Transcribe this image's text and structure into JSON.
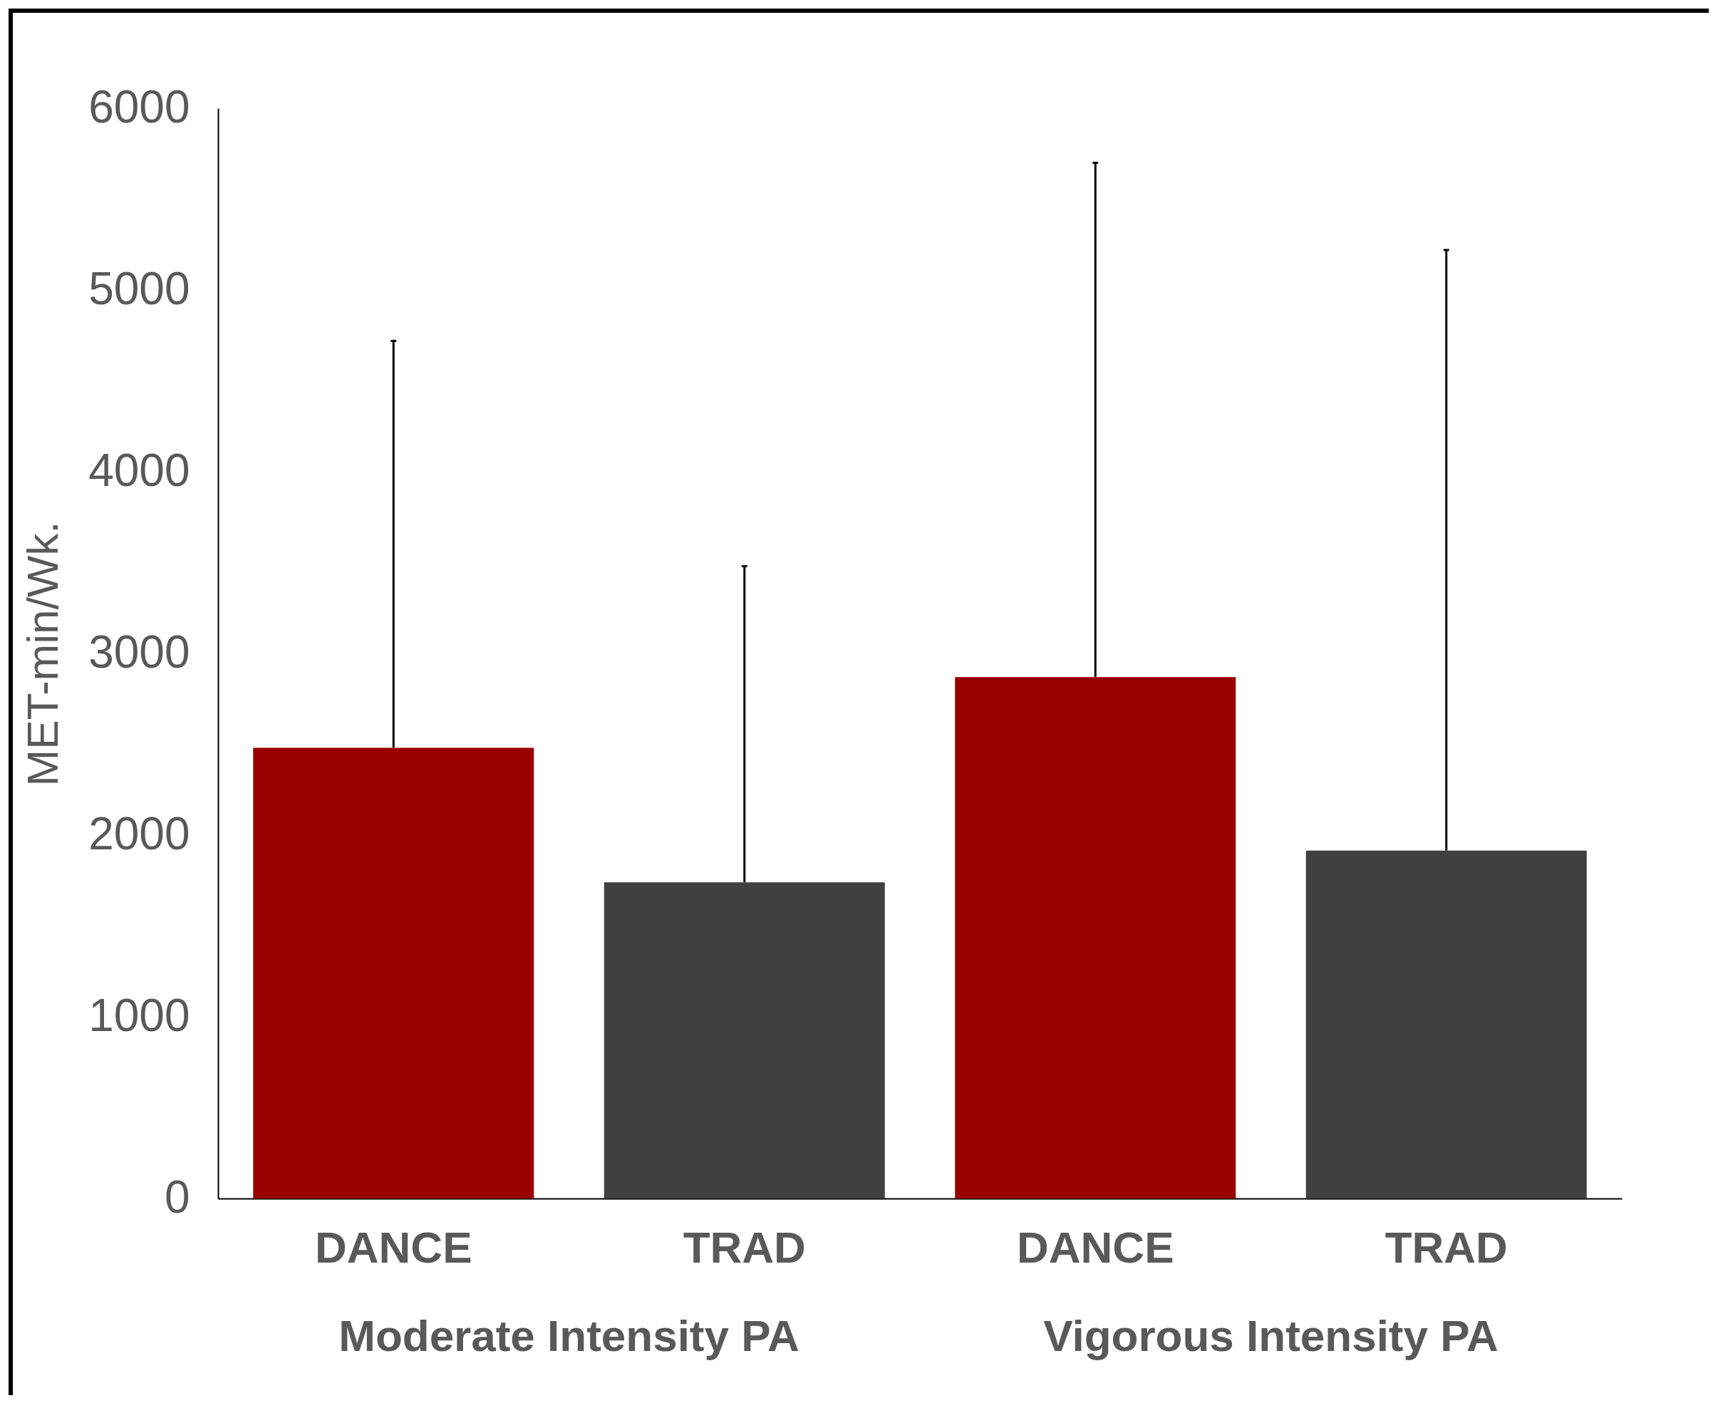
{
  "chart_data": {
    "type": "bar",
    "categories": [
      "Moderate Intensity PA",
      "Vigorous Intensity PA"
    ],
    "ylabel": "MET-min/Wk.",
    "series": [
      {
        "name": "DANCE",
        "color": "#990000",
        "values": [
          2480,
          2870
        ],
        "errors": [
          [
            2480,
            4720
          ],
          [
            2870,
            5700
          ]
        ]
      },
      {
        "name": "TRAD",
        "color": "#404040",
        "values": [
          1740,
          1915
        ],
        "errors": [
          [
            1740,
            3480
          ],
          [
            1915,
            5220
          ]
        ]
      }
    ],
    "ylim": [
      0,
      6000
    ],
    "yticks": [
      0,
      1000,
      2000,
      3000,
      4000,
      5000,
      6000
    ],
    "grid": false,
    "legend": false
  }
}
